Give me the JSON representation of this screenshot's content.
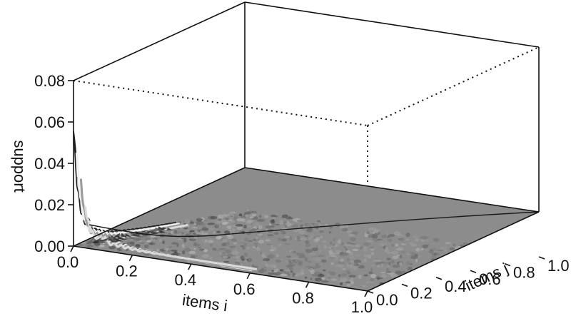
{
  "chart_data": {
    "type": "surface",
    "title": "",
    "xlabel": "items i",
    "ylabel": "items j",
    "zlabel": "support",
    "x_ticks": [
      "0.0",
      "0.2",
      "0.4",
      "0.6",
      "0.8",
      "1.0"
    ],
    "y_ticks": [
      "0.0",
      "0.2",
      "0.4",
      "0.6",
      "0.8",
      "1.0"
    ],
    "z_ticks": [
      "0.00",
      "0.02",
      "0.04",
      "0.06",
      "0.08"
    ],
    "xlim": [
      0,
      1
    ],
    "ylim": [
      0,
      1
    ],
    "zlim": [
      0,
      0.08
    ],
    "grid": false,
    "box": "full 3D bounding box, hidden edges dotted",
    "surface_colors": [
      "#ffffff",
      "#c8c8c8",
      "#8a8a8a",
      "#4a4a4a",
      "#222222"
    ],
    "description_of_values": "support is near 0.055 at i=0,j=0 and decays rapidly to about 0.002 for i,j above 0.1",
    "profile_along_i_at_j0": {
      "x": [
        0.0,
        0.01,
        0.02,
        0.04,
        0.06,
        0.1,
        0.2,
        0.4,
        0.6,
        0.8,
        1.0
      ],
      "z": [
        0.054,
        0.04,
        0.028,
        0.016,
        0.01,
        0.006,
        0.003,
        0.002,
        0.0015,
        0.0012,
        0.001
      ]
    },
    "profile_along_j_at_i0": {
      "y": [
        0.0,
        0.01,
        0.02,
        0.04,
        0.06,
        0.1,
        0.2,
        0.4,
        0.6,
        0.8,
        1.0
      ],
      "z": [
        0.054,
        0.04,
        0.028,
        0.016,
        0.01,
        0.006,
        0.003,
        0.002,
        0.0015,
        0.0012,
        0.001
      ]
    }
  }
}
